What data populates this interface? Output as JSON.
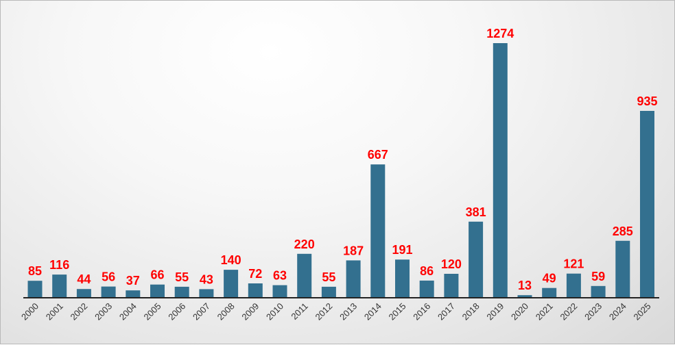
{
  "chart_data": {
    "type": "bar",
    "categories": [
      "2000",
      "2001",
      "2002",
      "2003",
      "2004",
      "2005",
      "2006",
      "2007",
      "2008",
      "2009",
      "2010",
      "2011",
      "2012",
      "2013",
      "2014",
      "2015",
      "2016",
      "2017",
      "2018",
      "2019",
      "2020",
      "2021",
      "2022",
      "2023",
      "2024",
      "2025"
    ],
    "values": [
      85,
      116,
      44,
      56,
      37,
      66,
      55,
      43,
      140,
      72,
      63,
      220,
      55,
      187,
      667,
      191,
      86,
      120,
      381,
      1274,
      13,
      49,
      121,
      59,
      285,
      935
    ],
    "title": "",
    "xlabel": "",
    "ylabel": "",
    "ylim": [
      0,
      1274
    ],
    "grid": false,
    "legend": "none",
    "colors": {
      "bar": "#33708f",
      "value_label": "#ff0000",
      "tick_label": "#333333"
    }
  }
}
